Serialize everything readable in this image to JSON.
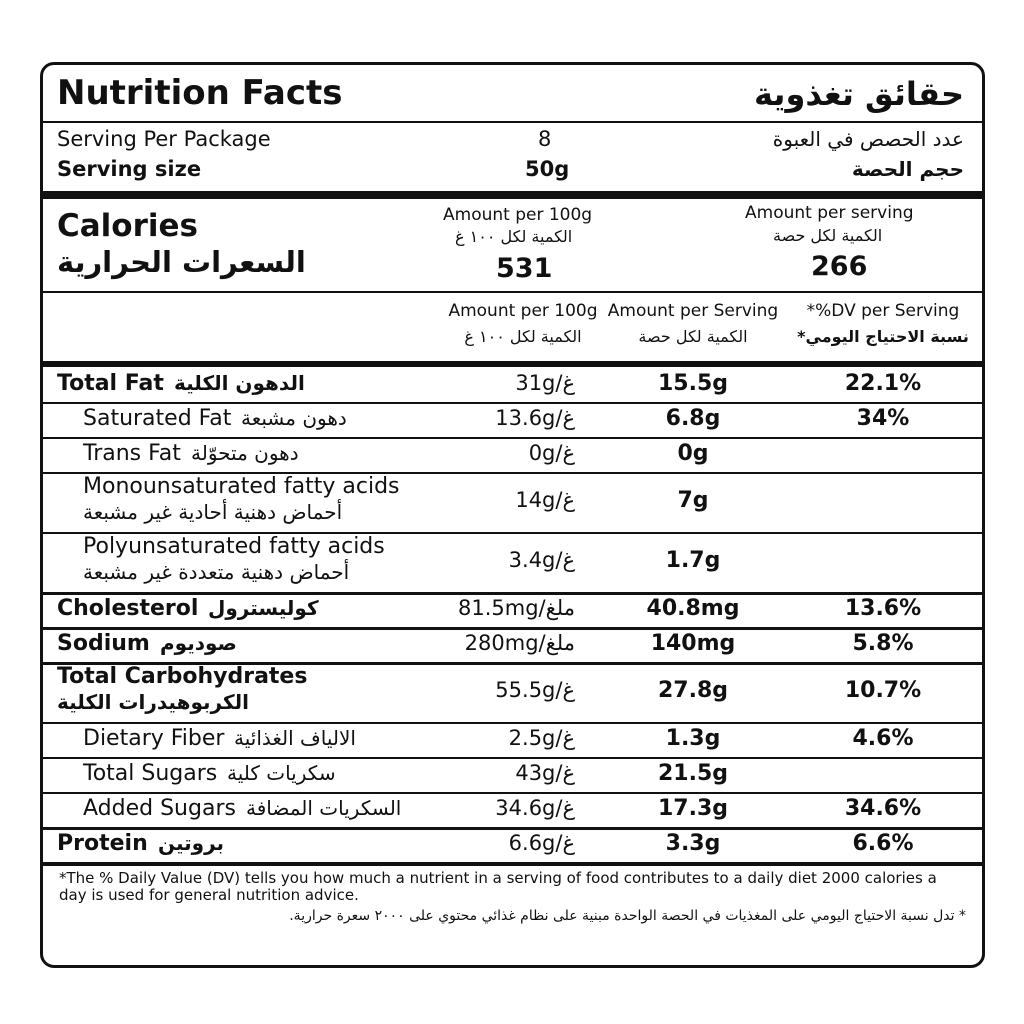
{
  "header": {
    "title_en": "Nutrition Facts",
    "title_ar": "حقائق تغذوية"
  },
  "serving": {
    "per_package_en": "Serving Per Package",
    "per_package_value": "8",
    "per_package_ar": "عدد الحصص في العبوة",
    "size_en": "Serving size",
    "size_value": "50g",
    "size_ar": "حجم الحصة"
  },
  "calories": {
    "label_en": "Calories",
    "label_ar": "السعرات الحرارية",
    "per100_en": "Amount per 100g",
    "per100_ar": "الكمية لكل ١٠٠ غ",
    "per100_value": "531",
    "serving_en": "Amount per serving",
    "serving_ar": "الكمية لكل حصة",
    "serving_value": "266"
  },
  "columns": [
    {
      "en": "Amount per 100g",
      "ar": "الكمية لكل ١٠٠ غ"
    },
    {
      "en": "Amount per Serving",
      "ar": "الكمية لكل حصة"
    },
    {
      "en": "*%DV per Serving",
      "ar": "نسبة الاحتياج اليومي*"
    }
  ],
  "rows": [
    {
      "en": "Total Fat",
      "ar": "الدهون الكلية",
      "per100": "31g/غ",
      "serving": "15.5g",
      "dv": "22.1%",
      "bold": true,
      "stacked": false
    },
    {
      "en": "Saturated Fat",
      "ar": "دهون مشبعة",
      "per100": "13.6g/غ",
      "serving": "6.8g",
      "dv": "34%",
      "bold": false,
      "stacked": false
    },
    {
      "en": "Trans Fat",
      "ar": "دهون متحوّلة",
      "per100": "0g/غ",
      "serving": "0g",
      "dv": null,
      "bold": false,
      "stacked": false
    },
    {
      "en": "Monounsaturated fatty acids",
      "ar": "أحماض دهنية أحادية غير مشبعة",
      "per100": "14g/غ",
      "serving": "7g",
      "dv": null,
      "bold": false,
      "stacked": true
    },
    {
      "en": "Polyunsaturated fatty acids",
      "ar": "أحماض دهنية متعددة غير مشبعة",
      "per100": "3.4g/غ",
      "serving": "1.7g",
      "dv": null,
      "bold": false,
      "stacked": true
    },
    {
      "en": "Cholesterol",
      "ar": "كوليسترول",
      "per100": "81.5mg/ملغ",
      "serving": "40.8mg",
      "dv": "13.6%",
      "bold": true,
      "stacked": false
    },
    {
      "en": "Sodium",
      "ar": "صوديوم",
      "per100": "280mg/ملغ",
      "serving": "140mg",
      "dv": "5.8%",
      "bold": true,
      "stacked": false
    },
    {
      "en": "Total Carbohydrates",
      "ar": "الكربوهيدرات الكلية",
      "per100": "55.5g/غ",
      "serving": "27.8g",
      "dv": "10.7%",
      "bold": true,
      "stacked": true
    },
    {
      "en": "Dietary Fiber",
      "ar": "الالياف الغذائية",
      "per100": "2.5g/غ",
      "serving": "1.3g",
      "dv": "4.6%",
      "bold": false,
      "stacked": false
    },
    {
      "en": "Total Sugars",
      "ar": "سكريات كلية",
      "per100": "43g/غ",
      "serving": "21.5g",
      "dv": null,
      "bold": false,
      "stacked": false
    },
    {
      "en": "Added Sugars",
      "ar": "السكريات المضافة",
      "per100": "34.6g/غ",
      "serving": "17.3g",
      "dv": "34.6%",
      "bold": false,
      "stacked": false
    },
    {
      "en": "Protein",
      "ar": "بروتين",
      "per100": "6.6g/غ",
      "serving": "3.3g",
      "dv": "6.6%",
      "bold": true,
      "stacked": false
    }
  ],
  "footnote": {
    "en": "*The % Daily Value (DV) tells you how much a nutrient in a serving of food contributes to a daily diet 2000 calories a day is used for general nutrition advice.",
    "ar": "* تدل نسبة الاحتياج اليومي على المغذيات في الحصة الواحدة مبنية على نظام غذائي محتوي على ٢٠٠٠ سعرة حرارية."
  }
}
